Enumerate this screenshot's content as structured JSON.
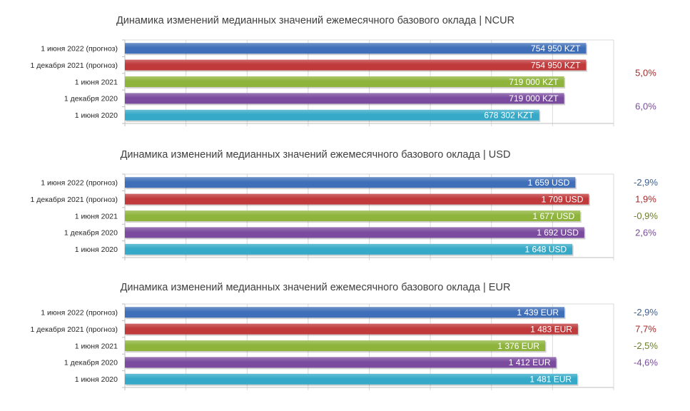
{
  "colors": {
    "jun2022": "#3f6fb8",
    "dec2021": "#c0393b",
    "jun2021": "#8fb43c",
    "dec2020": "#7a4b9e",
    "jun2020": "#35a9c7",
    "pct_blue": "#3f5f8f",
    "pct_red": "#a52a2a",
    "pct_green": "#6b7f2a",
    "pct_purple": "#7a4b9e"
  },
  "chart_data": [
    {
      "type": "bar",
      "orientation": "horizontal",
      "title": "Динамика изменений медианных значений ежемесячного базового оклада | NCUR",
      "categories": [
        "1 июня 2022 (прогноз)",
        "1 декабря 2021 (прогноз)",
        "1 июня 2021",
        "1 декабря 2020",
        "1 июня 2020"
      ],
      "values": [
        754950,
        754950,
        719000,
        719000,
        678302
      ],
      "labels": [
        "754 950 KZT",
        "754 950 KZT",
        "719 000 KZT",
        "719 000 KZT",
        "678 302 KZT"
      ],
      "bar_colors": [
        "jun2022",
        "dec2021",
        "jun2021",
        "dec2020",
        "jun2020"
      ],
      "xlim": [
        0,
        800000
      ],
      "grid": true,
      "changes": [
        {
          "text": "5,0%",
          "color": "pct_red",
          "row": 1.5
        },
        {
          "text": "6,0%",
          "color": "pct_purple",
          "row": 3.5
        }
      ]
    },
    {
      "type": "bar",
      "orientation": "horizontal",
      "title": "Динамика изменений медианных значений ежемесячного базового оклада | USD",
      "categories": [
        "1 июня 2022 (прогноз)",
        "1 декабря 2021 (прогноз)",
        "1 июня 2021",
        "1 декабря 2020",
        "1 июня 2020"
      ],
      "values": [
        1659,
        1709,
        1677,
        1692,
        1648
      ],
      "labels": [
        "1 659 USD",
        "1 709 USD",
        "1 677 USD",
        "1 692 USD",
        "1 648 USD"
      ],
      "bar_colors": [
        "jun2022",
        "dec2021",
        "jun2021",
        "dec2020",
        "jun2020"
      ],
      "xlim": [
        0,
        1800
      ],
      "grid": true,
      "changes": [
        {
          "text": "-2,9%",
          "color": "pct_blue",
          "row": 0.5
        },
        {
          "text": "1,9%",
          "color": "pct_red",
          "row": 1.5
        },
        {
          "text": "-0,9%",
          "color": "pct_green",
          "row": 2.5
        },
        {
          "text": "2,6%",
          "color": "pct_purple",
          "row": 3.5
        }
      ]
    },
    {
      "type": "bar",
      "orientation": "horizontal",
      "title": "Динамика изменений медианных значений ежемесячного базового оклада | EUR",
      "categories": [
        "1 июня 2022 (прогноз)",
        "1 декабря 2021 (прогноз)",
        "1 июня 2021",
        "1 декабря 2020",
        "1 июня 2020"
      ],
      "values": [
        1439,
        1483,
        1376,
        1412,
        1481
      ],
      "labels": [
        "1 439 EUR",
        "1 483 EUR",
        "1 376 EUR",
        "1 412 EUR",
        "1 481 EUR"
      ],
      "bar_colors": [
        "jun2022",
        "dec2021",
        "jun2021",
        "dec2020",
        "jun2020"
      ],
      "xlim": [
        0,
        1600
      ],
      "grid": true,
      "changes": [
        {
          "text": "-2,9%",
          "color": "pct_blue",
          "row": 0.5
        },
        {
          "text": "7,7%",
          "color": "pct_red",
          "row": 1.5
        },
        {
          "text": "-2,5%",
          "color": "pct_green",
          "row": 2.5
        },
        {
          "text": "-4,6%",
          "color": "pct_purple",
          "row": 3.5
        }
      ]
    }
  ]
}
